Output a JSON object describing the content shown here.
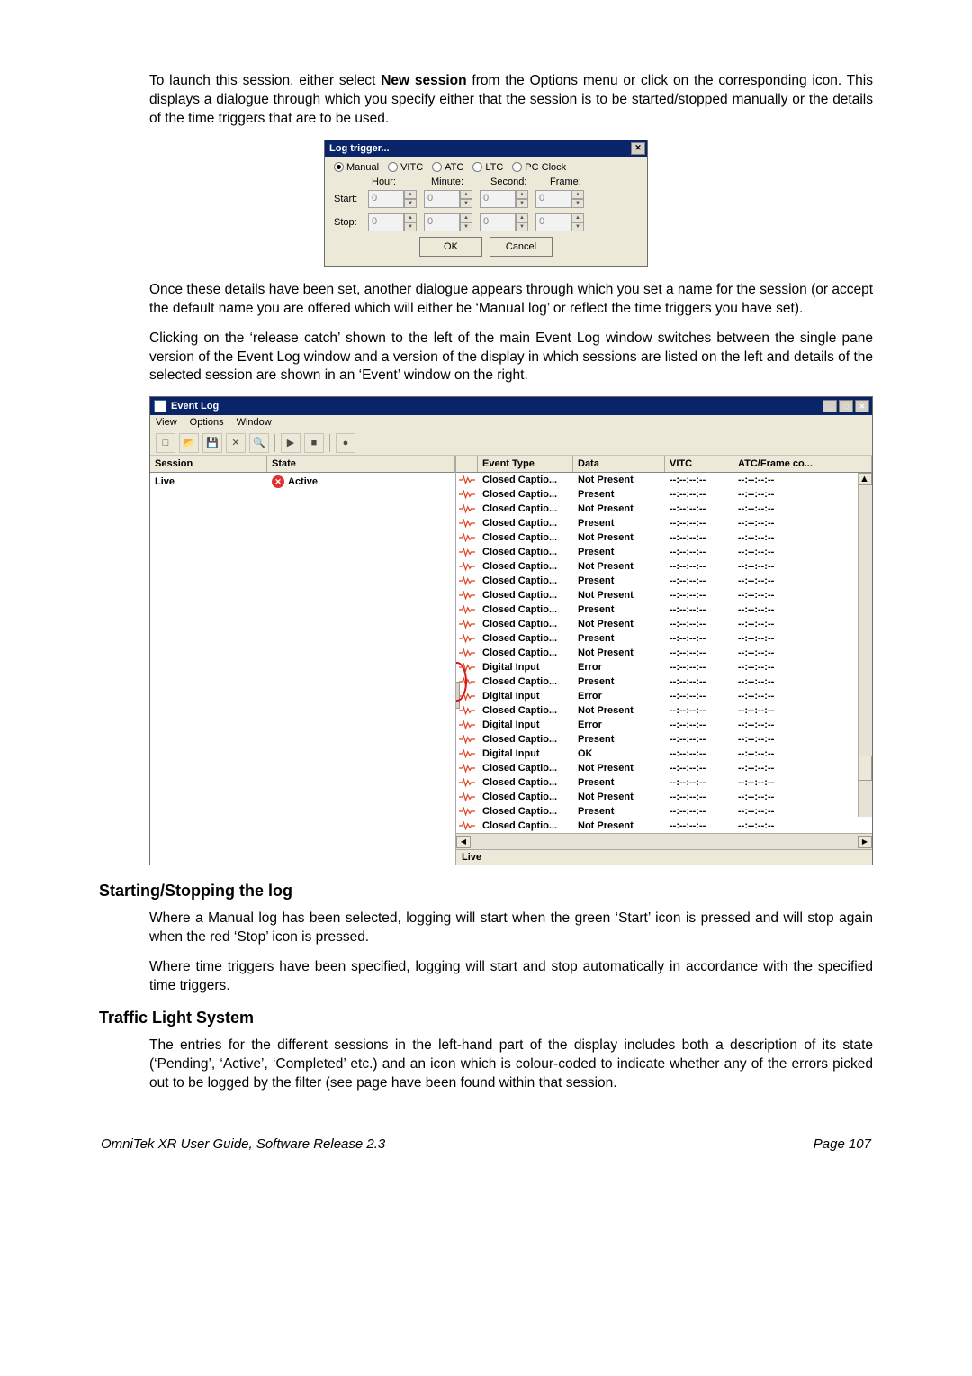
{
  "para1_pre": "To launch this session, either select ",
  "para1_bold": "New session",
  "para1_post": " from the Options menu or click on the corresponding icon. This displays a dialogue through which you specify either that the session is to be started/stopped manually or the details of the time triggers that are to be used.",
  "dlg1": {
    "title": "Log trigger...",
    "radios": [
      "Manual",
      "VITC",
      "ATC",
      "LTC",
      "PC Clock"
    ],
    "headers": [
      "Hour:",
      "Minute:",
      "Second:",
      "Frame:"
    ],
    "rows": [
      {
        "label": "Start:",
        "vals": [
          "0",
          "0",
          "0",
          "0"
        ]
      },
      {
        "label": "Stop:",
        "vals": [
          "0",
          "0",
          "0",
          "0"
        ]
      }
    ],
    "ok": "OK",
    "cancel": "Cancel"
  },
  "para2": "Once these details have been set, another dialogue appears through which you set a name for the session (or accept the default name you are offered which will either be ‘Manual log’ or reflect the time triggers you have set).",
  "para3": "Clicking on the ‘release catch’ shown to the left of the main Event Log window switches between the single pane version of the Event Log window and a version of the display in which sessions are listed on the left and details of the selected session are shown in an ‘Event’ window on the right.",
  "evt": {
    "title": "Event Log",
    "menus": [
      "View",
      "Options",
      "Window"
    ],
    "left_headers": [
      "Session",
      "State"
    ],
    "left_row": {
      "session": "Live",
      "state": "Active"
    },
    "right_headers": [
      "Event Type",
      "Data",
      "VITC",
      "ATC/Frame co..."
    ],
    "placeholder_tc": "--:--:--:--",
    "rows": [
      {
        "et": "Closed Captio...",
        "da": "Not Present"
      },
      {
        "et": "Closed Captio...",
        "da": "Present"
      },
      {
        "et": "Closed Captio...",
        "da": "Not Present"
      },
      {
        "et": "Closed Captio...",
        "da": "Present"
      },
      {
        "et": "Closed Captio...",
        "da": "Not Present"
      },
      {
        "et": "Closed Captio...",
        "da": "Present"
      },
      {
        "et": "Closed Captio...",
        "da": "Not Present"
      },
      {
        "et": "Closed Captio...",
        "da": "Present"
      },
      {
        "et": "Closed Captio...",
        "da": "Not Present"
      },
      {
        "et": "Closed Captio...",
        "da": "Present"
      },
      {
        "et": "Closed Captio...",
        "da": "Not Present"
      },
      {
        "et": "Closed Captio...",
        "da": "Present"
      },
      {
        "et": "Closed Captio...",
        "da": "Not Present"
      },
      {
        "et": "Digital Input",
        "da": "Error"
      },
      {
        "et": "Closed Captio...",
        "da": "Present"
      },
      {
        "et": "Digital Input",
        "da": "Error"
      },
      {
        "et": "Closed Captio...",
        "da": "Not Present"
      },
      {
        "et": "Digital Input",
        "da": "Error"
      },
      {
        "et": "Closed Captio...",
        "da": "Present"
      },
      {
        "et": "Digital Input",
        "da": "OK"
      },
      {
        "et": "Closed Captio...",
        "da": "Not Present"
      },
      {
        "et": "Closed Captio...",
        "da": "Present"
      },
      {
        "et": "Closed Captio...",
        "da": "Not Present"
      },
      {
        "et": "Closed Captio...",
        "da": "Present"
      },
      {
        "et": "Closed Captio...",
        "da": "Not Present"
      }
    ],
    "status": "Live"
  },
  "hdg1": "Starting/Stopping the log",
  "para4": "Where a Manual log has been selected, logging will start when the green ‘Start’ icon is pressed and will stop again when the red ‘Stop’ icon is pressed.",
  "para5": "Where time triggers have been specified, logging will start and stop automatically in accordance with the specified time triggers.",
  "hdg2": "Traffic Light System",
  "para6": "The entries for the different sessions in the left-hand part of the display includes both a description of its state (‘Pending’, ‘Active’, ‘Completed’ etc.) and an icon which is colour-coded to indicate whether any of the errors picked out to be logged by the filter (see page have been found within that session.",
  "footer_left": "OmniTek XR User Guide, Software Release 2.3",
  "footer_right": "Page 107"
}
